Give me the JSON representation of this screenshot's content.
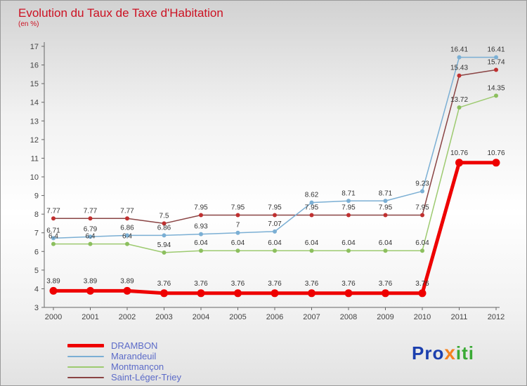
{
  "title": "Evolution du Taux de Taxe d'Habitation",
  "subtitle": "(en %)",
  "colors": {
    "title_red": "#cc1122",
    "legend_text": "#5c6bc8",
    "axis_text": "#444444",
    "point_label_text": "#333333",
    "logo_blue": "#1b3fae",
    "logo_orange": "#f5821f",
    "logo_green": "#3aaa35"
  },
  "logo": {
    "part1": "Pro",
    "part2": "x",
    "part3": "iti"
  },
  "chart_data": {
    "type": "line",
    "title": "Evolution du Taux de Taxe d'Habitation",
    "ylabel": "en %",
    "x": [
      2000,
      2001,
      2002,
      2003,
      2004,
      2005,
      2006,
      2007,
      2008,
      2009,
      2010,
      2011,
      2012
    ],
    "ylim": [
      3,
      17
    ],
    "yticks": [
      3,
      4,
      5,
      6,
      7,
      8,
      9,
      10,
      11,
      12,
      13,
      14,
      15,
      16,
      17
    ],
    "grid": false,
    "legend_position": "bottom-left",
    "series": [
      {
        "name": "DRAMBON",
        "color": "#ee0000",
        "width": 5,
        "marker": 5.5,
        "values": [
          3.89,
          3.89,
          3.89,
          3.76,
          3.76,
          3.76,
          3.76,
          3.76,
          3.76,
          3.76,
          3.76,
          10.76,
          10.76
        ]
      },
      {
        "name": "Marandeuil",
        "color": "#7bafd4",
        "width": 1.5,
        "marker": 3,
        "values": [
          6.71,
          6.79,
          6.86,
          6.86,
          6.93,
          7,
          7.07,
          8.62,
          8.71,
          8.71,
          9.23,
          16.41,
          16.41
        ]
      },
      {
        "name": "Montmançon",
        "color": "#9dca70",
        "width": 1.5,
        "marker": 3,
        "marker_color": "#8cbf5e",
        "values": [
          6.4,
          6.4,
          6.4,
          5.94,
          6.04,
          6.04,
          6.04,
          6.04,
          6.04,
          6.04,
          6.04,
          13.72,
          14.35
        ]
      },
      {
        "name": "Saint-Léger-Triey",
        "color": "#8a4444",
        "width": 1.5,
        "marker": 3,
        "marker_color": "#c03030",
        "values": [
          7.77,
          7.77,
          7.77,
          7.5,
          7.95,
          7.95,
          7.95,
          7.95,
          7.95,
          7.95,
          7.95,
          15.43,
          15.74
        ]
      }
    ]
  }
}
